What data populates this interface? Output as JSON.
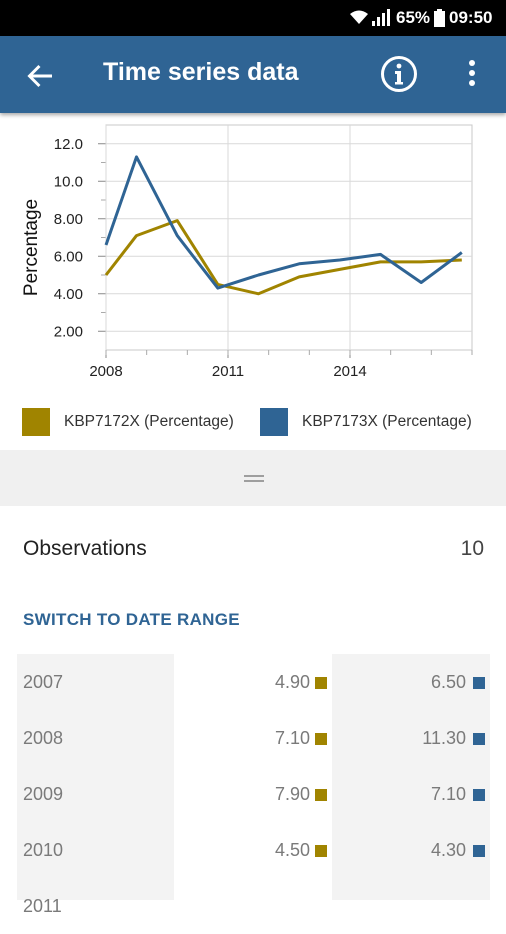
{
  "status_bar": {
    "battery_percent": "65%",
    "time": "09:50"
  },
  "app_bar": {
    "title": "Time series data",
    "back_icon": "arrow-back-icon",
    "info_icon": "info-icon",
    "menu_icon": "more-vert-icon"
  },
  "colors": {
    "app_bar": "#2f6494",
    "series_1": "#a08400",
    "series_2": "#2f6494"
  },
  "chart_data": {
    "type": "line",
    "ylabel": "Percentage",
    "xlabel": "",
    "x_ticks": [
      "2008",
      "2011",
      "2014"
    ],
    "y_ticks": [
      "12.0",
      "10.0",
      "8.00",
      "6.00",
      "4.00",
      "2.00"
    ],
    "ylim": [
      1.0,
      13.0
    ],
    "xlim": [
      2008,
      2017
    ],
    "grid": true,
    "legend_position": "bottom",
    "series": [
      {
        "name": "KBP7172X (Percentage)",
        "color": "#a08400",
        "points": [
          [
            2008,
            5.0
          ],
          [
            2008.75,
            7.1
          ],
          [
            2009.75,
            7.9
          ],
          [
            2010.75,
            4.5
          ],
          [
            2011.75,
            4.0
          ],
          [
            2012.75,
            4.9
          ],
          [
            2013.75,
            5.3
          ],
          [
            2014.75,
            5.7
          ],
          [
            2015.75,
            5.7
          ],
          [
            2016.75,
            5.8
          ]
        ]
      },
      {
        "name": "KBP7173X (Percentage)",
        "color": "#2f6494",
        "points": [
          [
            2008,
            6.6
          ],
          [
            2008.75,
            11.3
          ],
          [
            2009.75,
            7.1
          ],
          [
            2010.75,
            4.3
          ],
          [
            2011.75,
            5.0
          ],
          [
            2012.75,
            5.6
          ],
          [
            2013.75,
            5.8
          ],
          [
            2014.75,
            6.1
          ],
          [
            2015.75,
            4.6
          ],
          [
            2016.75,
            6.2
          ]
        ]
      }
    ]
  },
  "legend": {
    "series_1_label": "KBP7172X (Percentage)",
    "series_2_label": "KBP7173X (Percentage)"
  },
  "observations": {
    "label": "Observations",
    "count": "10"
  },
  "switch_link": "SWITCH TO DATE RANGE",
  "table": {
    "rows": [
      {
        "year": "2007",
        "v1": "4.90",
        "v2": "6.50"
      },
      {
        "year": "2008",
        "v1": "7.10",
        "v2": "11.30"
      },
      {
        "year": "2009",
        "v1": "7.90",
        "v2": "7.10"
      },
      {
        "year": "2010",
        "v1": "4.50",
        "v2": "4.30"
      },
      {
        "year": "2011",
        "v1": "",
        "v2": ""
      }
    ]
  }
}
